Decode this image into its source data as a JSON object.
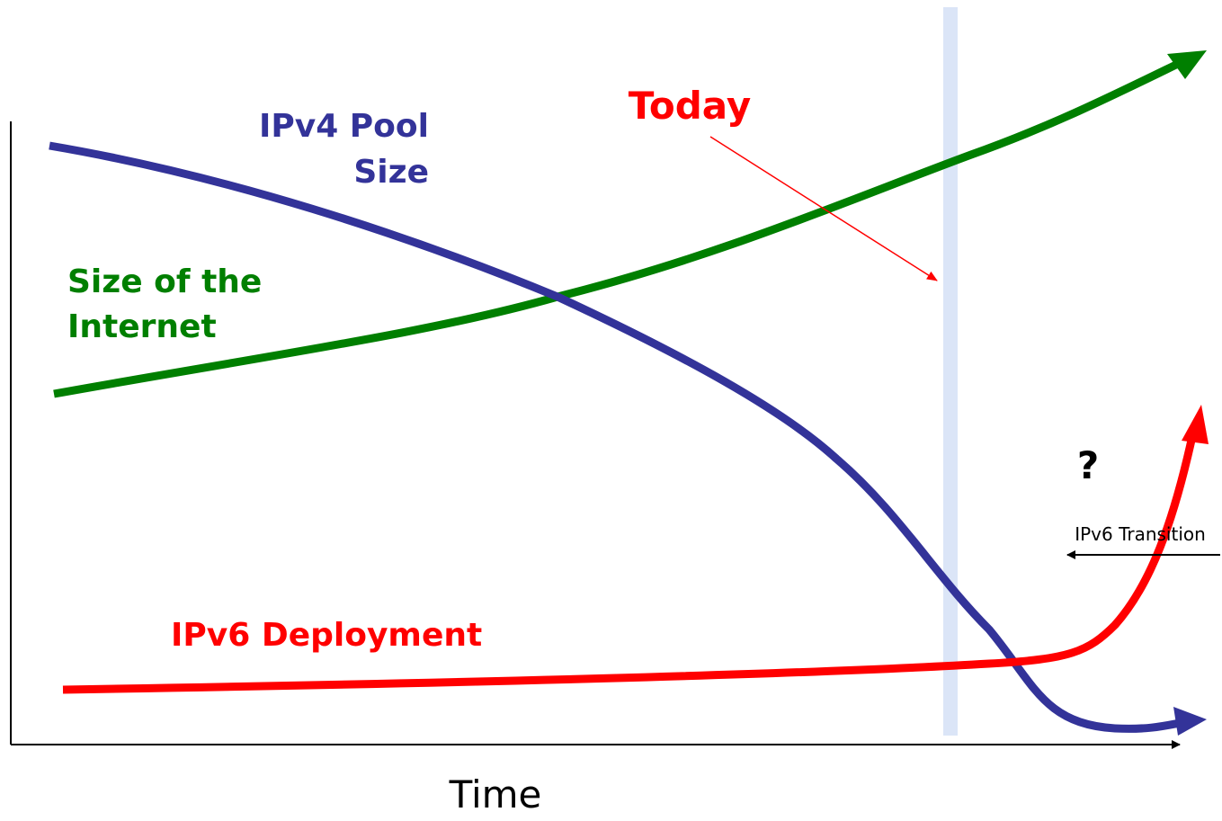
{
  "labels": {
    "ipv4": [
      "IPv4 Pool",
      "Size"
    ],
    "internet": [
      "Size of the",
      "Internet"
    ],
    "today": "Today",
    "question": "?",
    "transition": "IPv6 Transition",
    "deployment": "IPv6 Deployment",
    "time": "Time"
  }
}
